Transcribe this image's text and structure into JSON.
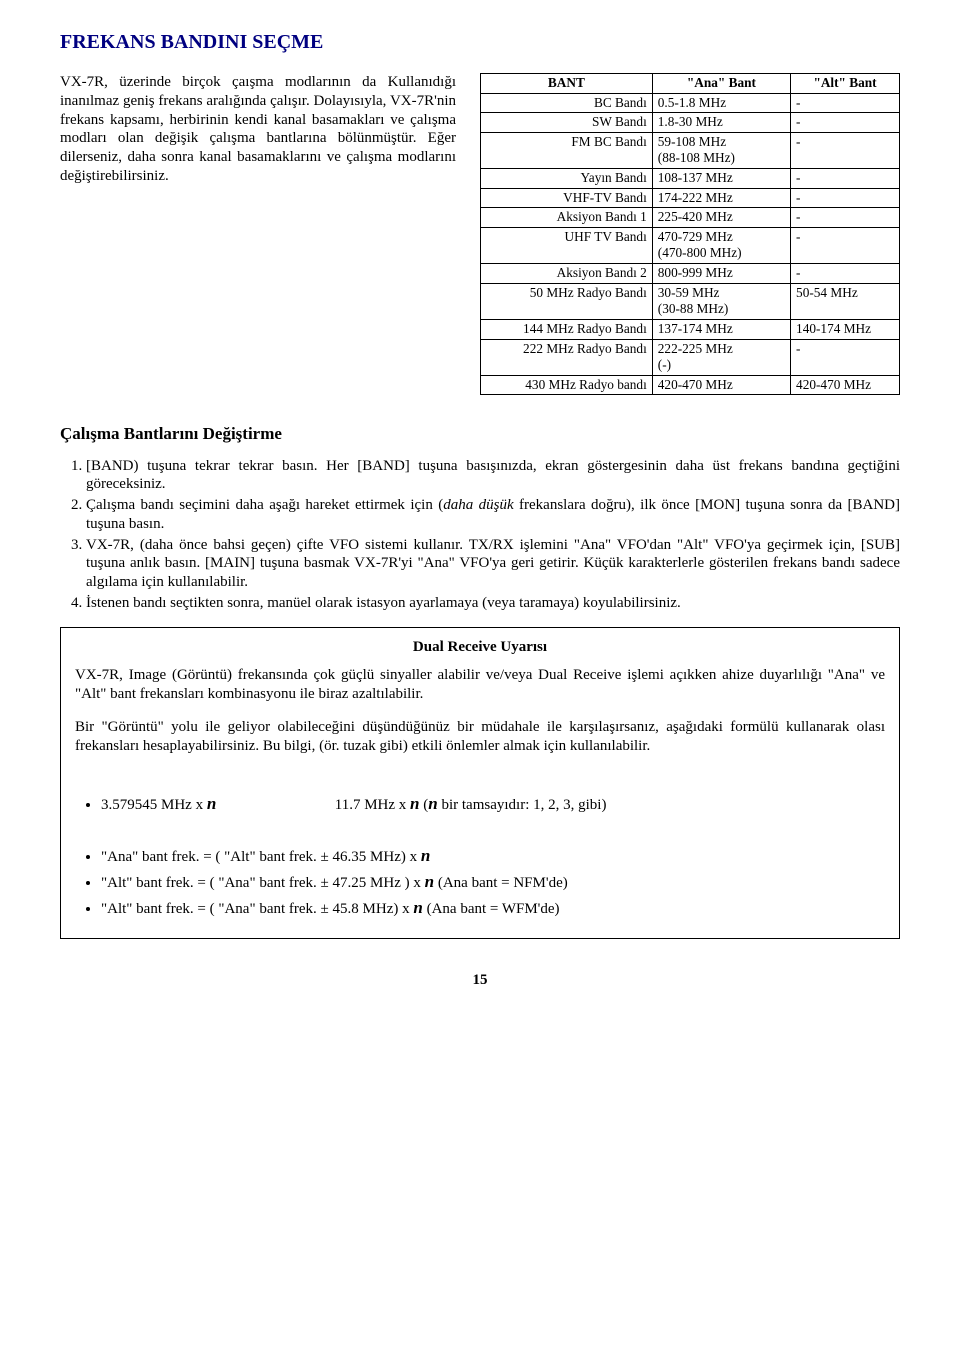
{
  "page": {
    "title": "FREKANS BANDINI SEÇME",
    "intro_html": "VX-7R, üzerinde birçok çaışma modlarının da Kullanıdığı inanılmaz geniş frekans aralığında çalışır. Dolayısıyla, VX-7R'nin frekans kapsamı, herbirinin kendi kanal basamakları ve çalışma modları olan değişik çalışma bantlarına bölünmüştür. Eğer dilerseniz, daha sonra kanal basamaklarını ve çalışma modlarını değiştirebilirsiniz.",
    "number": "15"
  },
  "freq_table": {
    "columns": [
      "BANT",
      "\"Ana\" Bant",
      "\"Alt\" Bant"
    ],
    "rows": [
      [
        "BC Bandı",
        "0.5-1.8 MHz",
        "-"
      ],
      [
        "SW Bandı",
        "1.8-30 MHz",
        "-"
      ],
      [
        "FM BC Bandı",
        "59-108 MHz\n(88-108 MHz)",
        "-"
      ],
      [
        "Yayın Bandı",
        "108-137 MHz",
        "-"
      ],
      [
        "VHF-TV Bandı",
        "174-222 MHz",
        "-"
      ],
      [
        "Aksiyon Bandı 1",
        "225-420 MHz",
        "-"
      ],
      [
        "UHF TV Bandı",
        "470-729 MHz\n(470-800 MHz)",
        "-"
      ],
      [
        "Aksiyon Bandı 2",
        "800-999 MHz",
        "-"
      ],
      [
        "50 MHz Radyo Bandı",
        "30-59 MHz\n(30-88 MHz)",
        "50-54 MHz"
      ],
      [
        "144 MHz Radyo Bandı",
        "137-174 MHz",
        "140-174 MHz"
      ],
      [
        "222 MHz Radyo Bandı",
        "222-225 MHz\n (-)",
        "-"
      ],
      [
        "430 MHz Radyo bandı",
        "420-470 MHz",
        "420-470 MHz"
      ]
    ],
    "col_widths": [
      "41%",
      "33%",
      "26%"
    ]
  },
  "section": {
    "heading": "Çalışma Bantlarını Değiştirme",
    "steps": [
      "[BAND) tuşuna tekrar tekrar basın. Her [BAND] tuşuna basışınızda, ekran göstergesinin daha üst frekans bandına geçtiğini göreceksiniz.",
      "Çalışma bandı seçimini daha aşağı hareket ettirmek için (<i>daha düşük</i> frekanslara doğru), ilk önce [MON] tuşuna sonra da [BAND] tuşuna basın.",
      "VX-7R, (daha önce bahsi geçen) çifte VFO sistemi kullanır. TX/RX işlemini \"Ana\" VFO'dan \"Alt\" VFO'ya geçirmek için, [SUB] tuşuna anlık basın. [MAIN] tuşuna basmak VX-7R'yi \"Ana\" VFO'ya geri getirir. Küçük karakterlerle gösterilen frekans bandı sadece algılama için kullanılabilir.",
      "İstenen bandı seçtikten sonra, manüel olarak istasyon ayarlamaya (veya taramaya) koyulabilirsiniz."
    ]
  },
  "box": {
    "title": "Dual Receive Uyarısı",
    "para1": "VX-7R, Image (Görüntü) frekansında çok güçlü sinyaller alabilir ve/veya Dual Receive işlemi açıkken ahize duyarlılığı \"Ana\" ve \"Alt\" bant frekansları kombinasyonu ile biraz azaltılabilir.",
    "para2": "Bir \"Görüntü\" yolu ile geliyor olabileceğini düşündüğünüz bir müdahale ile karşılaşırsanız, aşağıdaki formülü kullanarak olası frekansları hesaplayabilirsiniz. Bu bilgi, (ör. tuzak gibi) etkili önlemler almak için kullanılabilir.",
    "formula1_left": "3.579545 MHz x <span class=\"n-ital\">n</span>",
    "formula1_right": "11.7 MHz x <span class=\"n-ital\">n</span> (<span class=\"n-ital\">n</span> bir tamsayıdır: 1, 2, 3, gibi)",
    "bullets": [
      "\"Ana\" bant frek. = ( \"Alt\" bant frek. ± 46.35 MHz) x <span class=\"n-ital\">n</span>",
      "\"Alt\" bant frek. = ( \"Ana\" bant frek. ± 47.25 MHz ) x <span class=\"n-ital\">n</span> (Ana bant = NFM'de)",
      "\"Alt\" bant frek. = ( \"Ana\" bant frek. ± 45.8 MHz) x <span class=\"n-ital\">n</span> (Ana bant = WFM'de)"
    ]
  },
  "colors": {
    "title_color": "#000080",
    "text_color": "#000000",
    "border_color": "#000000",
    "background": "#ffffff"
  }
}
